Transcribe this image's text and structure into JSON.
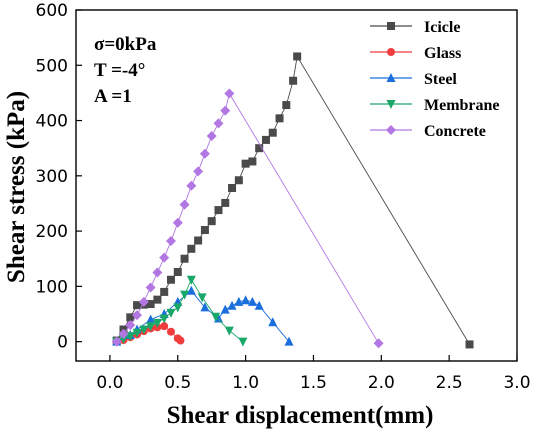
{
  "chart_data": {
    "type": "scatter",
    "xlabel": "Shear displacement(mm)",
    "ylabel": "Shear stress (kPa)",
    "xlim": [
      -0.25,
      3.0
    ],
    "ylim": [
      -35,
      600
    ],
    "xticks": [
      0.0,
      0.5,
      1.0,
      1.5,
      2.0,
      2.5,
      3.0
    ],
    "xtick_labels": [
      "0.0",
      "0.5",
      "1.0",
      "1.5",
      "2.0",
      "2.5",
      "3.0"
    ],
    "yticks": [
      0,
      100,
      200,
      300,
      400,
      500,
      600
    ],
    "ytick_labels": [
      "0",
      "100",
      "200",
      "300",
      "400",
      "500",
      "600"
    ],
    "annotations": [
      "σ=0kPa",
      "T =-4°",
      "A =1"
    ],
    "legend_position": "top-right",
    "grid": false,
    "series": [
      {
        "name": "Icicle",
        "color": "#4a4a4a",
        "marker": "square",
        "x": [
          0.05,
          0.1,
          0.15,
          0.2,
          0.25,
          0.3,
          0.35,
          0.4,
          0.45,
          0.5,
          0.55,
          0.6,
          0.65,
          0.7,
          0.75,
          0.8,
          0.85,
          0.9,
          0.95,
          1.0,
          1.05,
          1.1,
          1.15,
          1.2,
          1.25,
          1.3,
          1.35,
          1.38,
          2.65
        ],
        "y": [
          2,
          22,
          44,
          66,
          67,
          68,
          76,
          90,
          112,
          126,
          150,
          168,
          183,
          202,
          218,
          238,
          251,
          278,
          292,
          322,
          326,
          350,
          365,
          378,
          404,
          428,
          472,
          516,
          -5
        ]
      },
      {
        "name": "Glass",
        "color": "#f03c3c",
        "marker": "circle",
        "x": [
          0.05,
          0.1,
          0.15,
          0.2,
          0.25,
          0.3,
          0.35,
          0.4,
          0.45,
          0.5,
          0.52
        ],
        "y": [
          0,
          3,
          8,
          13,
          19,
          24,
          26,
          28,
          18,
          6,
          2
        ]
      },
      {
        "name": "Steel",
        "color": "#1a6fdc",
        "marker": "triangle-up",
        "x": [
          0.05,
          0.15,
          0.2,
          0.3,
          0.4,
          0.5,
          0.6,
          0.7,
          0.8,
          0.85,
          0.9,
          0.95,
          1.0,
          1.05,
          1.1,
          1.2,
          1.32
        ],
        "y": [
          0,
          12,
          22,
          40,
          50,
          72,
          92,
          62,
          42,
          58,
          65,
          72,
          75,
          72,
          65,
          35,
          0
        ]
      },
      {
        "name": "Membrane",
        "color": "#1aa86a",
        "marker": "triangle-down",
        "x": [
          0.05,
          0.1,
          0.15,
          0.2,
          0.25,
          0.3,
          0.35,
          0.4,
          0.45,
          0.5,
          0.55,
          0.6,
          0.68,
          0.78,
          0.88,
          0.98
        ],
        "y": [
          0,
          5,
          10,
          16,
          22,
          28,
          34,
          42,
          52,
          62,
          85,
          112,
          80,
          45,
          20,
          0
        ]
      },
      {
        "name": "Concrete",
        "color": "#b277e3",
        "marker": "diamond",
        "x": [
          0.05,
          0.1,
          0.15,
          0.2,
          0.25,
          0.3,
          0.35,
          0.4,
          0.45,
          0.5,
          0.55,
          0.6,
          0.65,
          0.7,
          0.75,
          0.8,
          0.85,
          0.88,
          1.98
        ],
        "y": [
          0,
          14,
          30,
          48,
          72,
          98,
          125,
          152,
          182,
          215,
          248,
          282,
          308,
          340,
          372,
          395,
          418,
          449,
          -3
        ]
      }
    ]
  }
}
